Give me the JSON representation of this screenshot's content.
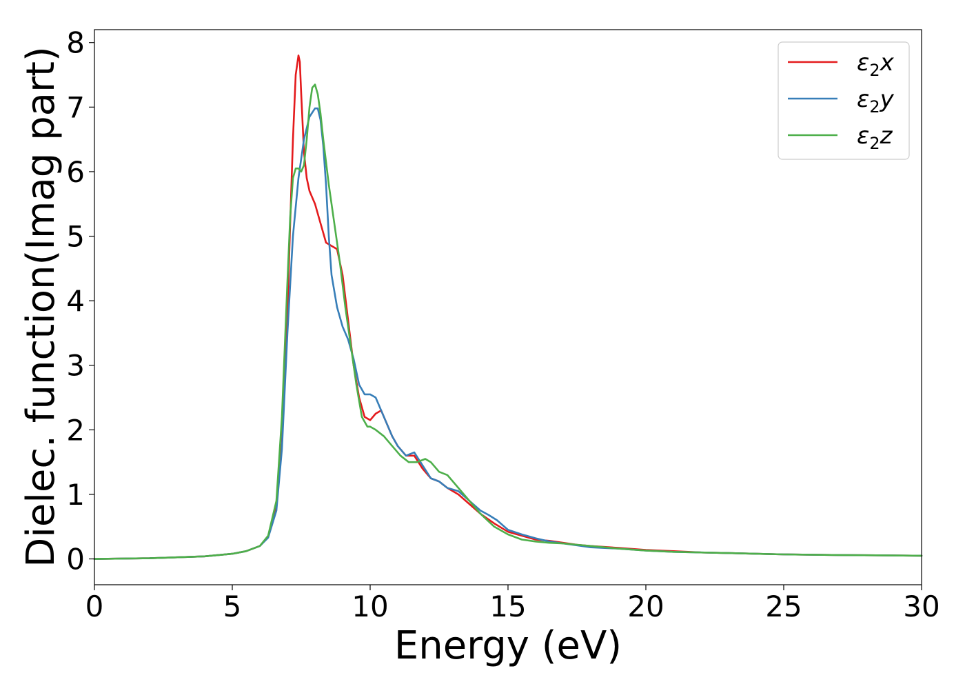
{
  "chart_data": {
    "type": "line",
    "title": "",
    "xlabel": "Energy (eV)",
    "ylabel": "Dielec. function(Imag part)",
    "xlim": [
      0,
      30
    ],
    "ylim": [
      -0.4,
      8.2
    ],
    "xticks": [
      0,
      5,
      10,
      15,
      20,
      25,
      30
    ],
    "yticks": [
      0,
      1,
      2,
      3,
      4,
      5,
      6,
      7,
      8
    ],
    "grid": false,
    "legend_position": "top-right",
    "series": [
      {
        "name": "ε2x",
        "legend_base": "ε",
        "legend_sub": "2",
        "legend_suffix": "x",
        "color": "#e41a1c",
        "x": [
          0,
          2,
          4,
          5,
          5.5,
          6,
          6.3,
          6.6,
          6.8,
          7.0,
          7.1,
          7.2,
          7.3,
          7.4,
          7.45,
          7.5,
          7.6,
          7.7,
          7.8,
          7.9,
          8.0,
          8.2,
          8.4,
          8.6,
          8.8,
          9.0,
          9.2,
          9.4,
          9.6,
          9.8,
          10.0,
          10.2,
          10.4,
          10.6,
          10.8,
          11.0,
          11.3,
          11.6,
          11.9,
          12.2,
          12.5,
          12.8,
          13.2,
          13.6,
          14.0,
          14.5,
          15.0,
          15.5,
          16.0,
          16.5,
          17.0,
          17.5,
          18.0,
          19.0,
          20.0,
          21.0,
          22.0,
          23.0,
          24.0,
          25.0,
          27.0,
          30.0
        ],
        "y": [
          0.0,
          0.01,
          0.04,
          0.08,
          0.12,
          0.2,
          0.35,
          0.8,
          1.8,
          3.8,
          5.2,
          6.5,
          7.5,
          7.8,
          7.7,
          7.2,
          6.3,
          5.9,
          5.7,
          5.6,
          5.5,
          5.2,
          4.9,
          4.85,
          4.8,
          4.4,
          3.7,
          3.0,
          2.5,
          2.2,
          2.15,
          2.25,
          2.3,
          2.1,
          1.9,
          1.75,
          1.6,
          1.6,
          1.4,
          1.25,
          1.2,
          1.1,
          1.0,
          0.85,
          0.7,
          0.55,
          0.42,
          0.36,
          0.3,
          0.28,
          0.25,
          0.22,
          0.2,
          0.17,
          0.14,
          0.12,
          0.1,
          0.09,
          0.08,
          0.07,
          0.06,
          0.05
        ]
      },
      {
        "name": "ε2y",
        "legend_base": "ε",
        "legend_sub": "2",
        "legend_suffix": "y",
        "color": "#377eb8",
        "x": [
          0,
          2,
          4,
          5,
          5.5,
          6,
          6.3,
          6.6,
          6.8,
          7.0,
          7.2,
          7.4,
          7.6,
          7.8,
          8.0,
          8.1,
          8.2,
          8.3,
          8.4,
          8.5,
          8.6,
          8.8,
          9.0,
          9.2,
          9.4,
          9.6,
          9.8,
          10.0,
          10.2,
          10.4,
          10.6,
          10.8,
          11.0,
          11.3,
          11.6,
          11.9,
          12.2,
          12.5,
          12.8,
          13.2,
          13.6,
          14.0,
          14.3,
          14.6,
          15.0,
          15.5,
          16.0,
          16.5,
          17.0,
          17.5,
          18.0,
          19.0,
          20.0,
          21.0,
          22.0,
          23.0,
          24.0,
          25.0,
          27.0,
          30.0
        ],
        "y": [
          0.0,
          0.01,
          0.04,
          0.08,
          0.12,
          0.2,
          0.33,
          0.75,
          1.7,
          3.5,
          5.0,
          5.9,
          6.5,
          6.85,
          6.98,
          6.98,
          6.8,
          6.4,
          5.8,
          5.0,
          4.4,
          3.9,
          3.6,
          3.4,
          3.1,
          2.7,
          2.55,
          2.55,
          2.5,
          2.3,
          2.1,
          1.9,
          1.75,
          1.6,
          1.65,
          1.45,
          1.25,
          1.2,
          1.1,
          1.05,
          0.9,
          0.75,
          0.68,
          0.6,
          0.45,
          0.38,
          0.32,
          0.27,
          0.24,
          0.21,
          0.18,
          0.16,
          0.13,
          0.11,
          0.1,
          0.09,
          0.08,
          0.07,
          0.06,
          0.05
        ]
      },
      {
        "name": "ε2z",
        "legend_base": "ε",
        "legend_sub": "2",
        "legend_suffix": "z",
        "color": "#4daf4a",
        "x": [
          0,
          2,
          4,
          5,
          5.5,
          6,
          6.3,
          6.6,
          6.8,
          7.0,
          7.1,
          7.2,
          7.3,
          7.4,
          7.5,
          7.6,
          7.7,
          7.8,
          7.9,
          8.0,
          8.1,
          8.2,
          8.3,
          8.5,
          8.7,
          8.9,
          9.1,
          9.3,
          9.5,
          9.7,
          9.9,
          10.0,
          10.2,
          10.5,
          10.8,
          11.1,
          11.4,
          11.7,
          12.0,
          12.2,
          12.5,
          12.8,
          13.1,
          13.4,
          13.7,
          14.0,
          14.5,
          15.0,
          15.5,
          16.0,
          16.5,
          17.0,
          17.5,
          18.0,
          19.0,
          20.0,
          21.0,
          22.0,
          23.0,
          24.0,
          25.0,
          27.0,
          30.0
        ],
        "y": [
          0.0,
          0.01,
          0.04,
          0.08,
          0.12,
          0.2,
          0.36,
          0.9,
          2.2,
          4.3,
          5.3,
          5.9,
          6.05,
          6.05,
          6.0,
          6.1,
          6.5,
          7.0,
          7.3,
          7.35,
          7.2,
          6.9,
          6.5,
          5.8,
          5.2,
          4.6,
          3.9,
          3.3,
          2.7,
          2.2,
          2.05,
          2.05,
          2.0,
          1.9,
          1.75,
          1.6,
          1.5,
          1.5,
          1.55,
          1.5,
          1.35,
          1.3,
          1.15,
          1.0,
          0.85,
          0.7,
          0.5,
          0.38,
          0.3,
          0.27,
          0.25,
          0.24,
          0.22,
          0.2,
          0.16,
          0.13,
          0.11,
          0.1,
          0.09,
          0.08,
          0.07,
          0.06,
          0.05
        ]
      }
    ]
  }
}
